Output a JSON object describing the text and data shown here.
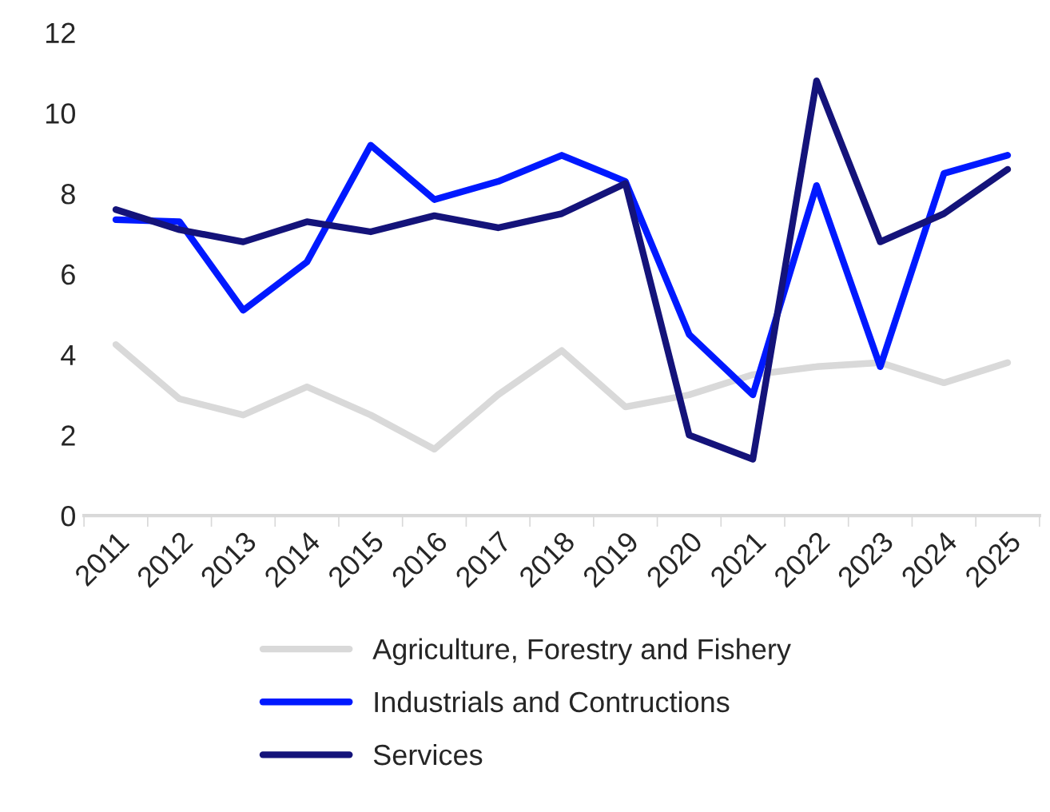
{
  "chart_data": {
    "type": "line",
    "categories": [
      "2011",
      "2012",
      "2013",
      "2014",
      "2015",
      "2016",
      "2017",
      "2018",
      "2019",
      "2020",
      "2021",
      "2022",
      "2023",
      "2024",
      "2025"
    ],
    "series": [
      {
        "name": "Agriculture, Forestry and Fishery",
        "color": "#d9d9d9",
        "values": [
          4.25,
          2.9,
          2.5,
          3.2,
          2.5,
          1.65,
          3.0,
          4.1,
          2.7,
          3.0,
          3.5,
          3.7,
          3.8,
          3.3,
          3.8
        ]
      },
      {
        "name": "Industrials and Contructions",
        "color": "#0019ff",
        "values": [
          7.35,
          7.3,
          5.1,
          6.3,
          9.2,
          7.85,
          8.3,
          8.95,
          8.3,
          4.5,
          3.0,
          8.2,
          3.7,
          8.5,
          8.95
        ]
      },
      {
        "name": "Services",
        "color": "#14137a",
        "values": [
          7.6,
          7.1,
          6.8,
          7.3,
          7.05,
          7.45,
          7.15,
          7.5,
          8.25,
          2.0,
          1.4,
          10.8,
          6.8,
          7.5,
          8.6
        ]
      }
    ],
    "ylim": [
      0,
      12
    ],
    "yticks": [
      0,
      2,
      4,
      6,
      8,
      10,
      12
    ],
    "grid": false,
    "legend": "bottom",
    "marker": "none",
    "line_style": "solid"
  }
}
